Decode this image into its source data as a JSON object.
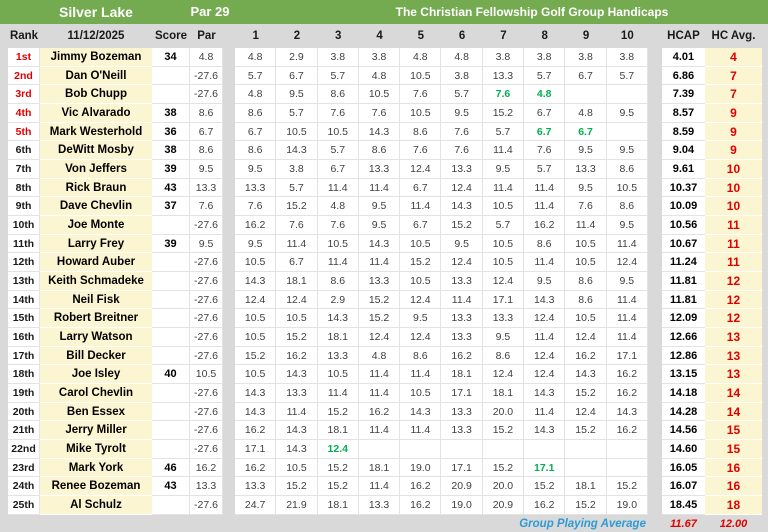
{
  "title": {
    "course": "Silver Lake",
    "par": "Par 29",
    "group": "The Christian Fellowship Golf Group Handicaps"
  },
  "header": {
    "rank": "Rank",
    "date": "11/12/2025",
    "score": "Score",
    "par": "Par",
    "rounds": [
      "1",
      "2",
      "3",
      "4",
      "5",
      "6",
      "7",
      "8",
      "9",
      "10"
    ],
    "hcap": "HCAP",
    "hc_avg": "HC Avg."
  },
  "colors": {
    "title_bar_green": "#74ab50",
    "header_gray": "#d9d9d9",
    "name_yellow": "#fcf5d1",
    "rank_red": "#e10000",
    "recent_score_green": "#00b050",
    "footer_blue": "#2e9bd6"
  },
  "players": [
    {
      "rank": "1st",
      "name": "Jimmy Bozeman",
      "score": "34",
      "par": "4.8",
      "rounds": [
        "4.8",
        "2.9",
        "3.8",
        "3.8",
        "4.8",
        "4.8",
        "3.8",
        "3.8",
        "3.8",
        "3.8"
      ],
      "green": [],
      "hcap": "4.01",
      "hc_avg": "4"
    },
    {
      "rank": "2nd",
      "name": "Dan O'Neill",
      "score": "",
      "par": "-27.6",
      "rounds": [
        "5.7",
        "6.7",
        "5.7",
        "4.8",
        "10.5",
        "3.8",
        "13.3",
        "5.7",
        "6.7",
        "5.7"
      ],
      "green": [],
      "hcap": "6.86",
      "hc_avg": "7"
    },
    {
      "rank": "3rd",
      "name": "Bob Chupp",
      "score": "",
      "par": "-27.6",
      "rounds": [
        "4.8",
        "9.5",
        "8.6",
        "10.5",
        "7.6",
        "5.7",
        "7.6",
        "4.8",
        "",
        ""
      ],
      "green": [
        6,
        7
      ],
      "hcap": "7.39",
      "hc_avg": "7"
    },
    {
      "rank": "4th",
      "name": "Vic Alvarado",
      "score": "38",
      "par": "8.6",
      "rounds": [
        "8.6",
        "5.7",
        "7.6",
        "7.6",
        "10.5",
        "9.5",
        "15.2",
        "6.7",
        "4.8",
        "9.5"
      ],
      "green": [],
      "hcap": "8.57",
      "hc_avg": "9"
    },
    {
      "rank": "5th",
      "name": "Mark Westerhold",
      "score": "36",
      "par": "6.7",
      "rounds": [
        "6.7",
        "10.5",
        "10.5",
        "14.3",
        "8.6",
        "7.6",
        "5.7",
        "6.7",
        "6.7",
        ""
      ],
      "green": [
        7,
        8
      ],
      "hcap": "8.59",
      "hc_avg": "9"
    },
    {
      "rank": "6th",
      "name": "DeWitt Mosby",
      "score": "38",
      "par": "8.6",
      "rounds": [
        "8.6",
        "14.3",
        "5.7",
        "8.6",
        "7.6",
        "7.6",
        "11.4",
        "7.6",
        "9.5",
        "9.5"
      ],
      "green": [],
      "hcap": "9.04",
      "hc_avg": "9"
    },
    {
      "rank": "7th",
      "name": "Von Jeffers",
      "score": "39",
      "par": "9.5",
      "rounds": [
        "9.5",
        "3.8",
        "6.7",
        "13.3",
        "12.4",
        "13.3",
        "9.5",
        "5.7",
        "13.3",
        "8.6"
      ],
      "green": [],
      "hcap": "9.61",
      "hc_avg": "10"
    },
    {
      "rank": "8th",
      "name": "Rick Braun",
      "score": "43",
      "par": "13.3",
      "rounds": [
        "13.3",
        "5.7",
        "11.4",
        "11.4",
        "6.7",
        "12.4",
        "11.4",
        "11.4",
        "9.5",
        "10.5"
      ],
      "green": [],
      "hcap": "10.37",
      "hc_avg": "10"
    },
    {
      "rank": "9th",
      "name": "Dave Chevlin",
      "score": "37",
      "par": "7.6",
      "rounds": [
        "7.6",
        "15.2",
        "4.8",
        "9.5",
        "11.4",
        "14.3",
        "10.5",
        "11.4",
        "7.6",
        "8.6"
      ],
      "green": [],
      "hcap": "10.09",
      "hc_avg": "10"
    },
    {
      "rank": "10th",
      "name": "Joe Monte",
      "score": "",
      "par": "-27.6",
      "rounds": [
        "16.2",
        "7.6",
        "7.6",
        "9.5",
        "6.7",
        "15.2",
        "5.7",
        "16.2",
        "11.4",
        "9.5"
      ],
      "green": [],
      "hcap": "10.56",
      "hc_avg": "11"
    },
    {
      "rank": "11th",
      "name": "Larry Frey",
      "score": "39",
      "par": "9.5",
      "rounds": [
        "9.5",
        "11.4",
        "10.5",
        "14.3",
        "10.5",
        "9.5",
        "10.5",
        "8.6",
        "10.5",
        "11.4"
      ],
      "green": [],
      "hcap": "10.67",
      "hc_avg": "11"
    },
    {
      "rank": "12th",
      "name": "Howard Auber",
      "score": "",
      "par": "-27.6",
      "rounds": [
        "10.5",
        "6.7",
        "11.4",
        "11.4",
        "15.2",
        "12.4",
        "10.5",
        "11.4",
        "10.5",
        "12.4"
      ],
      "green": [],
      "hcap": "11.24",
      "hc_avg": "11"
    },
    {
      "rank": "13th",
      "name": "Keith Schmadeke",
      "score": "",
      "par": "-27.6",
      "rounds": [
        "14.3",
        "18.1",
        "8.6",
        "13.3",
        "10.5",
        "13.3",
        "12.4",
        "9.5",
        "8.6",
        "9.5"
      ],
      "green": [],
      "hcap": "11.81",
      "hc_avg": "12"
    },
    {
      "rank": "14th",
      "name": "Neil Fisk",
      "score": "",
      "par": "-27.6",
      "rounds": [
        "12.4",
        "12.4",
        "2.9",
        "15.2",
        "12.4",
        "11.4",
        "17.1",
        "14.3",
        "8.6",
        "11.4"
      ],
      "green": [],
      "hcap": "11.81",
      "hc_avg": "12"
    },
    {
      "rank": "15th",
      "name": "Robert Breitner",
      "score": "",
      "par": "-27.6",
      "rounds": [
        "10.5",
        "10.5",
        "14.3",
        "15.2",
        "9.5",
        "13.3",
        "13.3",
        "12.4",
        "10.5",
        "11.4"
      ],
      "green": [],
      "hcap": "12.09",
      "hc_avg": "12"
    },
    {
      "rank": "16th",
      "name": "Larry Watson",
      "score": "",
      "par": "-27.6",
      "rounds": [
        "10.5",
        "15.2",
        "18.1",
        "12.4",
        "12.4",
        "13.3",
        "9.5",
        "11.4",
        "12.4",
        "11.4"
      ],
      "green": [],
      "hcap": "12.66",
      "hc_avg": "13"
    },
    {
      "rank": "17th",
      "name": "Bill Decker",
      "score": "",
      "par": "-27.6",
      "rounds": [
        "15.2",
        "16.2",
        "13.3",
        "4.8",
        "8.6",
        "16.2",
        "8.6",
        "12.4",
        "16.2",
        "17.1"
      ],
      "green": [],
      "hcap": "12.86",
      "hc_avg": "13"
    },
    {
      "rank": "18th",
      "name": "Joe Isley",
      "score": "40",
      "par": "10.5",
      "rounds": [
        "10.5",
        "14.3",
        "10.5",
        "11.4",
        "11.4",
        "18.1",
        "12.4",
        "12.4",
        "14.3",
        "16.2"
      ],
      "green": [],
      "hcap": "13.15",
      "hc_avg": "13"
    },
    {
      "rank": "19th",
      "name": "Carol Chevlin",
      "score": "",
      "par": "-27.6",
      "rounds": [
        "14.3",
        "13.3",
        "11.4",
        "11.4",
        "10.5",
        "17.1",
        "18.1",
        "14.3",
        "15.2",
        "16.2"
      ],
      "green": [],
      "hcap": "14.18",
      "hc_avg": "14"
    },
    {
      "rank": "20th",
      "name": "Ben Essex",
      "score": "",
      "par": "-27.6",
      "rounds": [
        "14.3",
        "11.4",
        "15.2",
        "16.2",
        "14.3",
        "13.3",
        "20.0",
        "11.4",
        "12.4",
        "14.3"
      ],
      "green": [],
      "hcap": "14.28",
      "hc_avg": "14"
    },
    {
      "rank": "21th",
      "name": "Jerry Miller",
      "score": "",
      "par": "-27.6",
      "rounds": [
        "16.2",
        "14.3",
        "18.1",
        "11.4",
        "11.4",
        "13.3",
        "15.2",
        "14.3",
        "15.2",
        "16.2"
      ],
      "green": [],
      "hcap": "14.56",
      "hc_avg": "15"
    },
    {
      "rank": "22nd",
      "name": "Mike Tyrolt",
      "score": "",
      "par": "-27.6",
      "rounds": [
        "17.1",
        "14.3",
        "12.4",
        "",
        "",
        "",
        "",
        "",
        "",
        ""
      ],
      "green": [
        2
      ],
      "hcap": "14.60",
      "hc_avg": "15"
    },
    {
      "rank": "23rd",
      "name": "Mark York",
      "score": "46",
      "par": "16.2",
      "rounds": [
        "16.2",
        "10.5",
        "15.2",
        "18.1",
        "19.0",
        "17.1",
        "15.2",
        "17.1",
        "",
        ""
      ],
      "green": [
        7
      ],
      "hcap": "16.05",
      "hc_avg": "16"
    },
    {
      "rank": "24th",
      "name": "Renee Bozeman",
      "score": "43",
      "par": "13.3",
      "rounds": [
        "13.3",
        "15.2",
        "15.2",
        "11.4",
        "16.2",
        "20.9",
        "20.0",
        "15.2",
        "18.1",
        "15.2"
      ],
      "green": [],
      "hcap": "16.07",
      "hc_avg": "16"
    },
    {
      "rank": "25th",
      "name": "Al Schulz",
      "score": "",
      "par": "-27.6",
      "rounds": [
        "24.7",
        "21.9",
        "18.1",
        "13.3",
        "16.2",
        "19.0",
        "20.9",
        "16.2",
        "15.2",
        "19.0"
      ],
      "green": [],
      "hcap": "18.45",
      "hc_avg": "18"
    }
  ],
  "footer": {
    "label": "Group Playing Average",
    "hcap_avg": "11.67",
    "hc_avg_avg": "12.00"
  }
}
